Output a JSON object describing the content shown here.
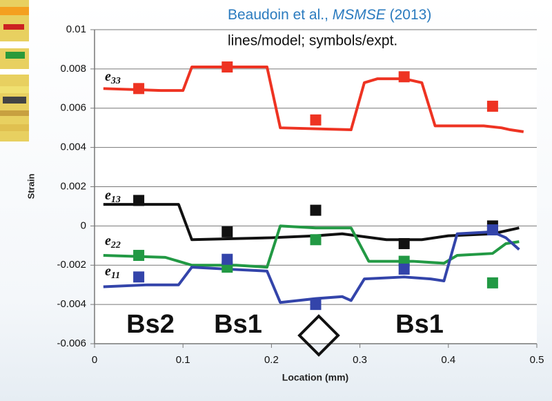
{
  "chart_data": {
    "type": "line",
    "citation": [
      "Beaudoin et al., ",
      "MSMSE",
      " (2013)"
    ],
    "note": "lines/model; symbols/expt.",
    "x_label": "Location (mm)",
    "y_label": "Strain",
    "xlim": [
      0,
      0.5
    ],
    "ylim": [
      -0.006,
      0.01
    ],
    "xticks": [
      0,
      0.1,
      0.2,
      0.3,
      0.4,
      0.5
    ],
    "yticks": [
      0.01,
      0.008,
      0.006,
      0.004,
      0.002,
      0,
      -0.002,
      -0.004,
      -0.006
    ],
    "regions": [
      "Bs2",
      "Bs1",
      "Bs1"
    ],
    "series": [
      {
        "label": [
          "e",
          "33"
        ],
        "color": "#ee3322",
        "x": [
          0.01,
          0.075,
          0.1,
          0.11,
          0.195,
          0.21,
          0.29,
          0.305,
          0.32,
          0.35,
          0.37,
          0.385,
          0.44,
          0.46,
          0.47,
          0.485
        ],
        "values": [
          0.007,
          0.0069,
          0.0069,
          0.0081,
          0.0081,
          0.005,
          0.0049,
          0.0073,
          0.0075,
          0.0075,
          0.0073,
          0.0051,
          0.0051,
          0.005,
          0.0049,
          0.0048
        ],
        "points": {
          "x": [
            0.05,
            0.15,
            0.25,
            0.35,
            0.45
          ],
          "values": [
            0.007,
            0.0081,
            0.0054,
            0.0076,
            0.0061
          ]
        }
      },
      {
        "label": [
          "e",
          "13"
        ],
        "color": "#111111",
        "x": [
          0.01,
          0.05,
          0.095,
          0.11,
          0.2,
          0.25,
          0.28,
          0.33,
          0.37,
          0.4,
          0.45,
          0.48
        ],
        "values": [
          0.0011,
          0.0011,
          0.0011,
          -0.0007,
          -0.0006,
          -0.0005,
          -0.0004,
          -0.0007,
          -0.0007,
          -0.0005,
          -0.0004,
          -0.0001
        ],
        "points": {
          "x": [
            0.05,
            0.15,
            0.25,
            0.35,
            0.45
          ],
          "values": [
            0.0013,
            -0.0003,
            0.0008,
            -0.0009,
            0
          ]
        }
      },
      {
        "label": [
          "e",
          "22"
        ],
        "color": "#229944",
        "x": [
          0.01,
          0.08,
          0.11,
          0.16,
          0.195,
          0.21,
          0.25,
          0.29,
          0.31,
          0.36,
          0.395,
          0.41,
          0.45,
          0.465,
          0.48
        ],
        "values": [
          -0.0015,
          -0.0016,
          -0.002,
          -0.002,
          -0.0021,
          0,
          -0.0001,
          -0.0001,
          -0.0018,
          -0.0018,
          -0.0019,
          -0.0015,
          -0.0014,
          -0.0009,
          -0.0008
        ],
        "points": {
          "x": [
            0.05,
            0.15,
            0.25,
            0.35,
            0.45
          ],
          "values": [
            -0.0015,
            -0.0021,
            -0.0007,
            -0.0018,
            -0.0029
          ]
        }
      },
      {
        "label": [
          "e",
          "11"
        ],
        "color": "#3344aa",
        "x": [
          0.01,
          0.06,
          0.095,
          0.11,
          0.15,
          0.195,
          0.21,
          0.25,
          0.28,
          0.29,
          0.305,
          0.35,
          0.38,
          0.395,
          0.41,
          0.45,
          0.465,
          0.48
        ],
        "values": [
          -0.0031,
          -0.003,
          -0.003,
          -0.0021,
          -0.0022,
          -0.0023,
          -0.0039,
          -0.0037,
          -0.0036,
          -0.0038,
          -0.0027,
          -0.0026,
          -0.0027,
          -0.0028,
          -0.0004,
          -0.0003,
          -0.0006,
          -0.0012
        ],
        "points": {
          "x": [
            0.05,
            0.15,
            0.25,
            0.35,
            0.45
          ],
          "values": [
            -0.0026,
            -0.0017,
            -0.004,
            -0.0022,
            -0.0002
          ]
        }
      }
    ]
  }
}
